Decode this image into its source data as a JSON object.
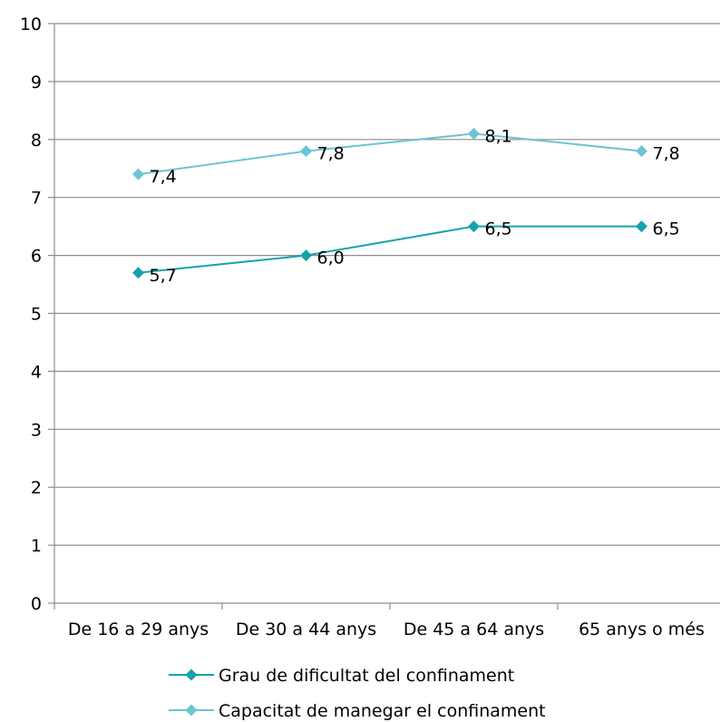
{
  "chart_data": {
    "type": "line",
    "categories": [
      "De 16 a 29 anys",
      "De 30 a 44 anys",
      "De 45 a 64 anys",
      "65 anys o més"
    ],
    "series": [
      {
        "name": "Grau de dificultat del confinament",
        "values": [
          5.7,
          6.0,
          6.5,
          6.5
        ],
        "labels": [
          "5,7",
          "6,0",
          "6,5",
          "6,5"
        ],
        "color": "#15a2ad",
        "marker": "diamond"
      },
      {
        "name": "Capacitat de manegar el confinament",
        "values": [
          7.4,
          7.8,
          8.1,
          7.8
        ],
        "labels": [
          "7,4",
          "7,8",
          "8,1",
          "7,8"
        ],
        "color": "#6cc5d3",
        "marker": "diamond"
      }
    ],
    "y_ticks": [
      "0",
      "1",
      "2",
      "3",
      "4",
      "5",
      "6",
      "7",
      "8",
      "9",
      "10"
    ],
    "ylim": [
      0,
      10
    ],
    "grid": true,
    "legend_position": "bottom",
    "colors": {
      "gridline": "#8c8c8c",
      "axis": "#8c8c8c"
    }
  }
}
